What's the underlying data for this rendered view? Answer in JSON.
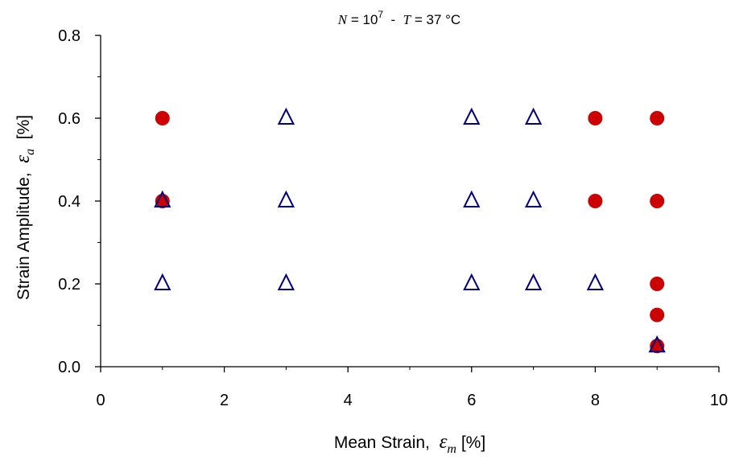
{
  "chart_data": {
    "type": "scatter",
    "title": {
      "n_symbol": "N",
      "n_rest": " = 10",
      "n_exponent": "7",
      "separator": "  -  ",
      "t_symbol": "T",
      "t_rest": " = 37 °C"
    },
    "xlabel": {
      "text": "Mean Strain,  ",
      "symbol": "ε",
      "subscript": "m",
      "unit": " [%]"
    },
    "ylabel": {
      "text": "Strain Amplitude,  ",
      "symbol": "ε",
      "subscript": "a",
      "unit": "  [%]"
    },
    "xlim": [
      0,
      10
    ],
    "ylim": [
      0,
      0.8
    ],
    "x_ticks": [
      "0",
      "2",
      "4",
      "6",
      "8",
      "10"
    ],
    "y_ticks": [
      "0.0",
      "0.2",
      "0.4",
      "0.6",
      "0.8"
    ],
    "grid": false,
    "legend": "none",
    "series": [
      {
        "marker": "filled-circle",
        "color": "#cc0000",
        "points": [
          {
            "x": 1,
            "y": 0.6
          },
          {
            "x": 1,
            "y": 0.4
          },
          {
            "x": 8,
            "y": 0.6
          },
          {
            "x": 8,
            "y": 0.4
          },
          {
            "x": 9,
            "y": 0.6
          },
          {
            "x": 9,
            "y": 0.4
          },
          {
            "x": 9,
            "y": 0.2
          },
          {
            "x": 9,
            "y": 0.125
          },
          {
            "x": 9,
            "y": 0.05
          }
        ]
      },
      {
        "marker": "open-triangle",
        "color": "#000080",
        "points": [
          {
            "x": 1,
            "y": 0.4
          },
          {
            "x": 1,
            "y": 0.2
          },
          {
            "x": 3,
            "y": 0.6
          },
          {
            "x": 3,
            "y": 0.4
          },
          {
            "x": 3,
            "y": 0.2
          },
          {
            "x": 6,
            "y": 0.6
          },
          {
            "x": 6,
            "y": 0.4
          },
          {
            "x": 6,
            "y": 0.2
          },
          {
            "x": 7,
            "y": 0.6
          },
          {
            "x": 7,
            "y": 0.4
          },
          {
            "x": 7,
            "y": 0.2
          },
          {
            "x": 8,
            "y": 0.2
          },
          {
            "x": 9,
            "y": 0.05
          }
        ]
      }
    ]
  }
}
